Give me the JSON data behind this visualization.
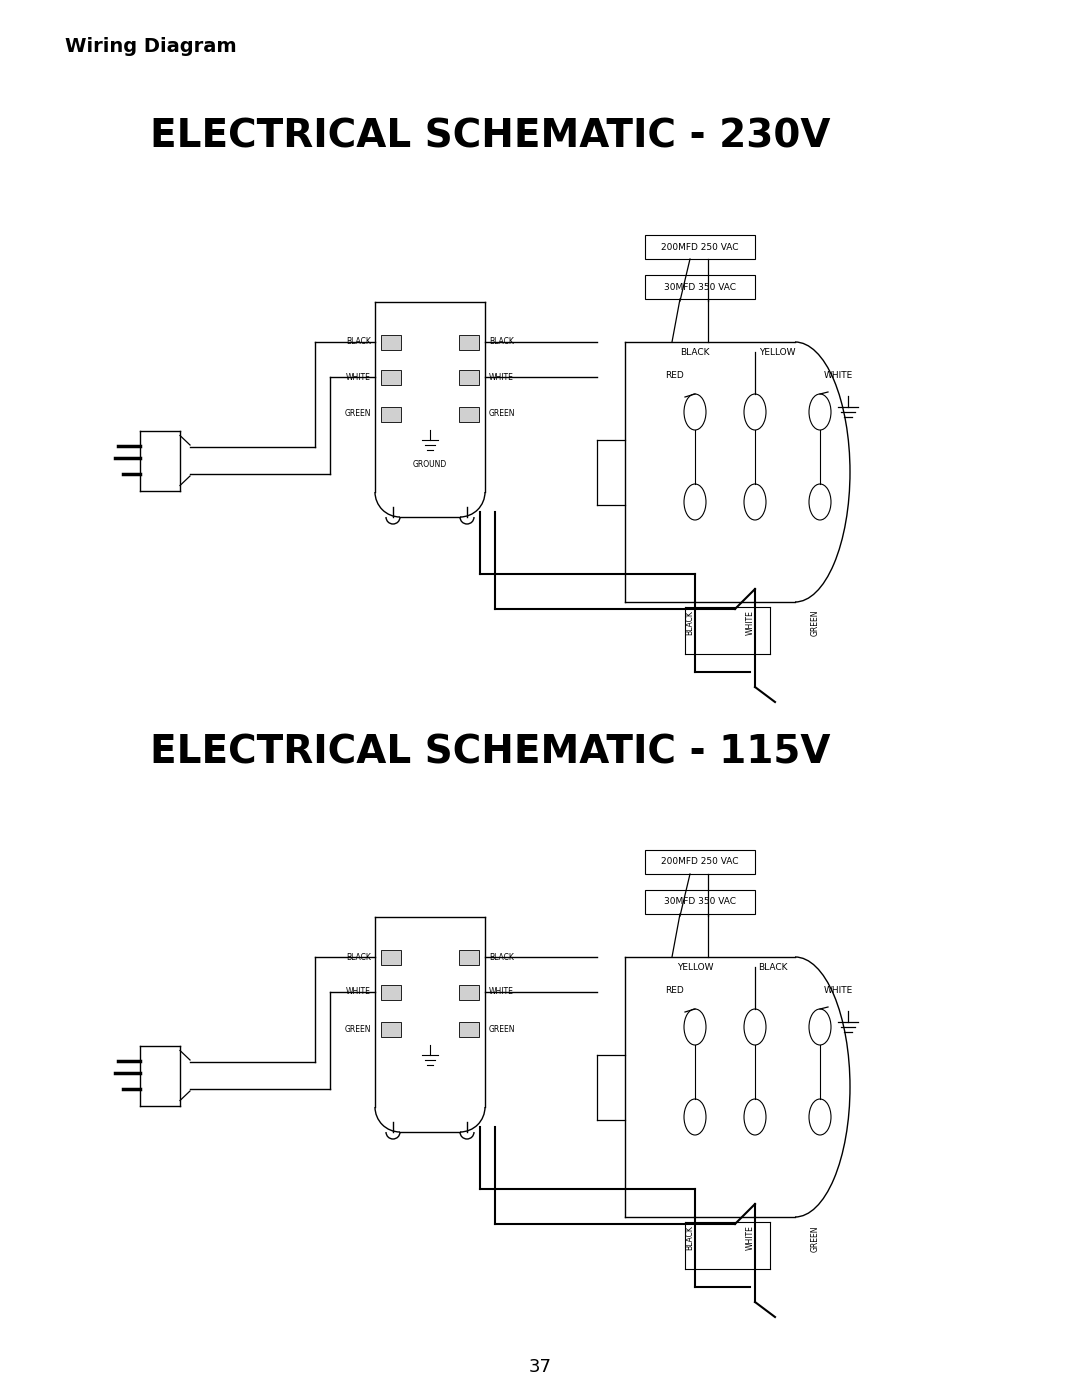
{
  "title_115": "ELECTRICAL SCHEMATIC - 115V",
  "title_230": "ELECTRICAL SCHEMATIC - 230V",
  "header": "Wiring Diagram",
  "page_num": "37",
  "bg_color": "#ffffff",
  "lc": "#000000",
  "cap1_label": "200MFD 250 VAC",
  "cap2_label": "30MFD 350 VAC",
  "bottom_wire_labels": [
    "BLACK",
    "WHITE",
    "GREEN"
  ],
  "ground_label": "GROUND",
  "fig_w": 10.8,
  "fig_h": 13.97
}
